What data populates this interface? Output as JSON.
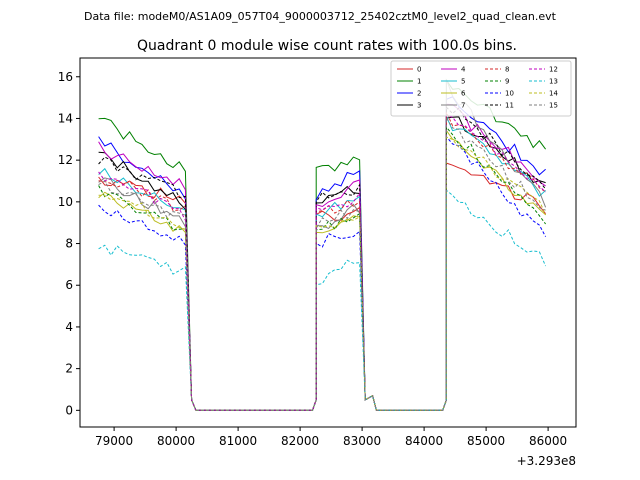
{
  "suptitle": "Data file: modeM0/AS1A09_057T04_9000003712_25402cztM0_level2_quad_clean.evt",
  "chart_data": {
    "type": "line",
    "title": "Quadrant 0 module wise count rates with 100.0s bins.",
    "xlabel": "",
    "ylabel": "",
    "x_offset_label": "+3.293e8",
    "xlim": [
      78450,
      86450
    ],
    "ylim": [
      -0.8,
      16.9
    ],
    "xticks": [
      79000,
      80000,
      81000,
      82000,
      83000,
      84000,
      85000,
      86000
    ],
    "xtick_labels": [
      "79000",
      "80000",
      "81000",
      "82000",
      "83000",
      "84000",
      "85000",
      "86000"
    ],
    "yticks": [
      0,
      2,
      4,
      6,
      8,
      10,
      12,
      14,
      16
    ],
    "ytick_labels": [
      "0",
      "2",
      "4",
      "6",
      "8",
      "10",
      "12",
      "14",
      "16"
    ],
    "gaps": [
      {
        "x": [
          80250,
          80320,
          82200,
          82260
        ],
        "y": [
          0.5,
          0,
          0,
          0.5
        ]
      },
      {
        "x": [
          83050,
          83170,
          83230,
          84300,
          84360
        ],
        "y": [
          0.5,
          0.7,
          0,
          0,
          0.5
        ]
      }
    ],
    "segments": [
      {
        "x0": 78750,
        "x1": 80150
      },
      {
        "x0": 82260,
        "x1": 83050
      },
      {
        "x0": 84360,
        "x1": 86050
      }
    ],
    "series": [
      {
        "name": "0",
        "color": "#d62728",
        "dashed": false,
        "levels": [
          11.0,
          10.2,
          9.3,
          9.5,
          11.8,
          9.6
        ]
      },
      {
        "name": "1",
        "color": "#008000",
        "dashed": false,
        "levels": [
          14.0,
          11.5,
          11.4,
          12.4,
          15.8,
          12.3
        ]
      },
      {
        "name": "2",
        "color": "#0000ff",
        "dashed": false,
        "levels": [
          12.9,
          10.4,
          10.3,
          11.6,
          15.0,
          11.1
        ]
      },
      {
        "name": "3",
        "color": "#000000",
        "dashed": false,
        "levels": [
          12.4,
          9.8,
          9.8,
          10.8,
          14.3,
          10.5
        ]
      },
      {
        "name": "4",
        "color": "#bf00bf",
        "dashed": false,
        "levels": [
          12.6,
          10.8,
          9.6,
          11.2,
          14.6,
          10.8
        ]
      },
      {
        "name": "5",
        "color": "#17becf",
        "dashed": false,
        "levels": [
          11.6,
          9.4,
          9.4,
          10.4,
          13.9,
          10.1
        ]
      },
      {
        "name": "6",
        "color": "#bcbd22",
        "dashed": false,
        "levels": [
          10.4,
          8.6,
          8.6,
          9.6,
          13.2,
          9.1
        ]
      },
      {
        "name": "7",
        "color": "#7f7f7f",
        "dashed": false,
        "levels": [
          11.2,
          9.0,
          8.7,
          9.9,
          15.6,
          9.6
        ]
      },
      {
        "name": "8",
        "color": "#d62728",
        "dashed": true,
        "levels": [
          11.3,
          9.6,
          9.4,
          10.1,
          14.1,
          10.2
        ]
      },
      {
        "name": "9",
        "color": "#008000",
        "dashed": true,
        "levels": [
          10.5,
          8.6,
          8.7,
          9.3,
          13.6,
          8.9
        ]
      },
      {
        "name": "10",
        "color": "#0000ff",
        "dashed": true,
        "levels": [
          9.8,
          8.1,
          8.0,
          8.8,
          13.1,
          8.2
        ]
      },
      {
        "name": "11",
        "color": "#000000",
        "dashed": true,
        "levels": [
          12.0,
          10.3,
          10.1,
          10.6,
          14.7,
          10.6
        ]
      },
      {
        "name": "12",
        "color": "#bf00bf",
        "dashed": true,
        "levels": [
          11.4,
          9.4,
          9.5,
          10.2,
          14.3,
          10.1
        ]
      },
      {
        "name": "13",
        "color": "#17becf",
        "dashed": true,
        "levels": [
          7.9,
          6.6,
          6.2,
          7.3,
          10.4,
          7.0
        ]
      },
      {
        "name": "14",
        "color": "#bcbd22",
        "dashed": true,
        "levels": [
          10.6,
          8.8,
          8.6,
          9.6,
          13.4,
          9.3
        ]
      },
      {
        "name": "15",
        "color": "#7f7f7f",
        "dashed": true,
        "levels": [
          10.9,
          9.2,
          8.9,
          9.8,
          13.9,
          9.4
        ]
      }
    ],
    "legend_placement": "top-right"
  }
}
